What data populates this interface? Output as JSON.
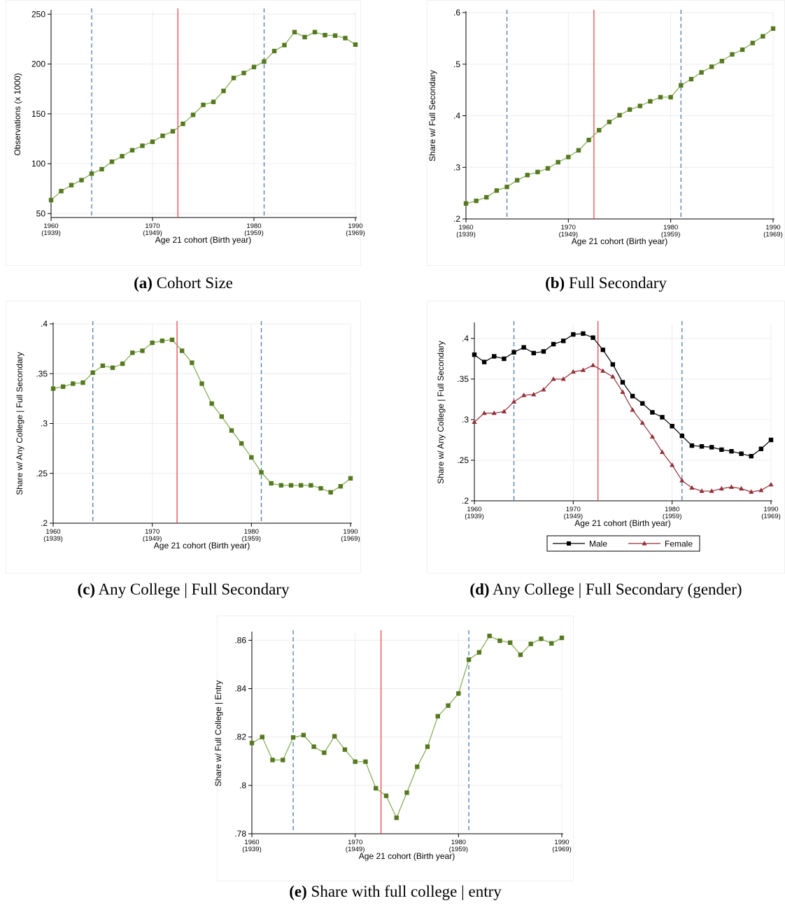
{
  "chart_data": [
    {
      "id": "a",
      "type": "line",
      "caption_tag": "(a)",
      "caption_text": "Cohort Size",
      "xlabel": "Age 21 cohort (Birth year)",
      "ylabel": "Observations (x 1000)",
      "x_ticks": [
        {
          "v": 1960,
          "l": "1960",
          "s": "(1939)"
        },
        {
          "v": 1970,
          "l": "1970",
          "s": "(1949)"
        },
        {
          "v": 1980,
          "l": "1980",
          "s": "(1959)"
        },
        {
          "v": 1990,
          "l": "1990",
          "s": "(1969)"
        }
      ],
      "y_ticks": [
        {
          "v": 50,
          "l": "50"
        },
        {
          "v": 100,
          "l": "100"
        },
        {
          "v": 150,
          "l": "150"
        },
        {
          "v": 200,
          "l": "200"
        },
        {
          "v": 250,
          "l": "250"
        }
      ],
      "xlim": [
        1960,
        1990
      ],
      "ylim": [
        46,
        253
      ],
      "vlines": [
        {
          "x": 1964,
          "style": "dashed",
          "color": "#4f7bad"
        },
        {
          "x": 1972.5,
          "style": "solid",
          "color": "#e8454a"
        },
        {
          "x": 1981,
          "style": "dashed",
          "color": "#4f7bad"
        }
      ],
      "x": [
        1960,
        1961,
        1962,
        1963,
        1964,
        1965,
        1966,
        1967,
        1968,
        1969,
        1970,
        1971,
        1972,
        1973,
        1974,
        1975,
        1976,
        1977,
        1978,
        1979,
        1980,
        1981,
        1982,
        1983,
        1984,
        1985,
        1986,
        1987,
        1988,
        1989,
        1990
      ],
      "series": [
        {
          "values": [
            63.5,
            72.5,
            78.5,
            83.5,
            90,
            94.5,
            102,
            107.5,
            113.5,
            118,
            122,
            128,
            132.5,
            140,
            149,
            159,
            162,
            173,
            186,
            191,
            197,
            202.5,
            213,
            219,
            232,
            227,
            232,
            229,
            228.5,
            226,
            219.5
          ],
          "color": "#4a7a14",
          "marker": "square",
          "marker_color": "#56791f",
          "line_color": "#7faa4e"
        }
      ],
      "legend": []
    },
    {
      "id": "b",
      "type": "line",
      "caption_tag": "(b)",
      "caption_text": "Full Secondary",
      "xlabel": "Age 21 cohort (Birth year)",
      "ylabel": "Share w/ Full Secondary",
      "x_ticks": [
        {
          "v": 1960,
          "l": "1960",
          "s": "(1939)"
        },
        {
          "v": 1970,
          "l": "1970",
          "s": "(1949)"
        },
        {
          "v": 1980,
          "l": "1980",
          "s": "(1959)"
        },
        {
          "v": 1990,
          "l": "1990",
          "s": "(1969)"
        }
      ],
      "y_ticks": [
        {
          "v": 0.2,
          "l": ".2"
        },
        {
          "v": 0.3,
          "l": ".3"
        },
        {
          "v": 0.4,
          "l": ".4"
        },
        {
          "v": 0.5,
          "l": ".5"
        },
        {
          "v": 0.6,
          "l": ".6"
        }
      ],
      "xlim": [
        1960,
        1990
      ],
      "ylim": [
        0.2,
        0.6
      ],
      "vlines": [
        {
          "x": 1964,
          "style": "dashed",
          "color": "#4f7bad"
        },
        {
          "x": 1972.5,
          "style": "solid",
          "color": "#e8454a"
        },
        {
          "x": 1981,
          "style": "dashed",
          "color": "#4f7bad"
        }
      ],
      "x": [
        1960,
        1961,
        1962,
        1963,
        1964,
        1965,
        1966,
        1967,
        1968,
        1969,
        1970,
        1971,
        1972,
        1973,
        1974,
        1975,
        1976,
        1977,
        1978,
        1979,
        1980,
        1981,
        1982,
        1983,
        1984,
        1985,
        1986,
        1987,
        1988,
        1989,
        1990
      ],
      "series": [
        {
          "values": [
            0.23,
            0.235,
            0.242,
            0.255,
            0.262,
            0.275,
            0.285,
            0.291,
            0.298,
            0.31,
            0.32,
            0.333,
            0.353,
            0.372,
            0.388,
            0.401,
            0.412,
            0.419,
            0.428,
            0.436,
            0.436,
            0.459,
            0.471,
            0.484,
            0.495,
            0.506,
            0.519,
            0.528,
            0.541,
            0.554,
            0.569
          ],
          "color": "#4a7a14",
          "marker": "square",
          "marker_color": "#56791f",
          "line_color": "#7faa4e"
        }
      ],
      "legend": []
    },
    {
      "id": "c",
      "type": "line",
      "caption_tag": "(c)",
      "caption_text": "Any College | Full Secondary",
      "xlabel": "Age 21 cohort (Birth year)",
      "ylabel": "Share w/ Any College | Full Secondary",
      "x_ticks": [
        {
          "v": 1960,
          "l": "1960",
          "s": "(1939)"
        },
        {
          "v": 1970,
          "l": "1970",
          "s": "(1949)"
        },
        {
          "v": 1980,
          "l": "1980",
          "s": "(1959)"
        },
        {
          "v": 1990,
          "l": "1990",
          "s": "(1969)"
        }
      ],
      "y_ticks": [
        {
          "v": 0.2,
          "l": ".2"
        },
        {
          "v": 0.25,
          "l": ".25"
        },
        {
          "v": 0.3,
          "l": ".3"
        },
        {
          "v": 0.35,
          "l": ".35"
        },
        {
          "v": 0.4,
          "l": ".4"
        }
      ],
      "xlim": [
        1960,
        1990
      ],
      "ylim": [
        0.2,
        0.4
      ],
      "vlines": [
        {
          "x": 1964,
          "style": "dashed",
          "color": "#4f7bad"
        },
        {
          "x": 1972.5,
          "style": "solid",
          "color": "#e8454a"
        },
        {
          "x": 1981,
          "style": "dashed",
          "color": "#4f7bad"
        }
      ],
      "x": [
        1960,
        1961,
        1962,
        1963,
        1964,
        1965,
        1966,
        1967,
        1968,
        1969,
        1970,
        1971,
        1972,
        1973,
        1974,
        1975,
        1976,
        1977,
        1978,
        1979,
        1980,
        1981,
        1982,
        1983,
        1984,
        1985,
        1986,
        1987,
        1988,
        1989,
        1990
      ],
      "series": [
        {
          "values": [
            0.335,
            0.337,
            0.34,
            0.341,
            0.351,
            0.358,
            0.356,
            0.36,
            0.371,
            0.373,
            0.381,
            0.383,
            0.384,
            0.373,
            0.361,
            0.34,
            0.32,
            0.307,
            0.293,
            0.28,
            0.266,
            0.251,
            0.24,
            0.238,
            0.238,
            0.238,
            0.238,
            0.235,
            0.231,
            0.237,
            0.245
          ],
          "color": "#4a7a14",
          "marker": "square",
          "marker_color": "#56791f",
          "line_color": "#7faa4e"
        }
      ],
      "legend": []
    },
    {
      "id": "d",
      "type": "line",
      "caption_tag": "(d)",
      "caption_text": "Any College | Full Secondary (gender)",
      "xlabel": "Age 21 cohort (Birth year)",
      "ylabel": "Share w/ Any College | Full Secondary",
      "x_ticks": [
        {
          "v": 1960,
          "l": "1960",
          "s": "(1939)"
        },
        {
          "v": 1970,
          "l": "1970",
          "s": "(1949)"
        },
        {
          "v": 1980,
          "l": "1980",
          "s": "(1959)"
        },
        {
          "v": 1990,
          "l": "1990",
          "s": "(1969)"
        }
      ],
      "y_ticks": [
        {
          "v": 0.2,
          "l": ".2"
        },
        {
          "v": 0.25,
          "l": ".25"
        },
        {
          "v": 0.3,
          "l": ".3"
        },
        {
          "v": 0.35,
          "l": ".35"
        },
        {
          "v": 0.4,
          "l": ".4"
        }
      ],
      "xlim": [
        1960,
        1990
      ],
      "ylim": [
        0.2,
        0.418
      ],
      "vlines": [
        {
          "x": 1964,
          "style": "dashed",
          "color": "#4f7bad"
        },
        {
          "x": 1972.5,
          "style": "solid",
          "color": "#e8454a"
        },
        {
          "x": 1981,
          "style": "dashed",
          "color": "#4f7bad"
        }
      ],
      "x": [
        1960,
        1961,
        1962,
        1963,
        1964,
        1965,
        1966,
        1967,
        1968,
        1969,
        1970,
        1971,
        1972,
        1973,
        1974,
        1975,
        1976,
        1977,
        1978,
        1979,
        1980,
        1981,
        1982,
        1983,
        1984,
        1985,
        1986,
        1987,
        1988,
        1989,
        1990
      ],
      "series": [
        {
          "name": "Male",
          "values": [
            0.38,
            0.371,
            0.378,
            0.375,
            0.383,
            0.389,
            0.382,
            0.384,
            0.393,
            0.397,
            0.405,
            0.406,
            0.401,
            0.386,
            0.368,
            0.346,
            0.329,
            0.32,
            0.309,
            0.303,
            0.292,
            0.28,
            0.268,
            0.267,
            0.266,
            0.263,
            0.261,
            0.258,
            0.255,
            0.264,
            0.275
          ],
          "color": "#000000",
          "marker": "square",
          "marker_color": "#000000",
          "line_color": "#000000"
        },
        {
          "name": "Female",
          "values": [
            0.297,
            0.308,
            0.308,
            0.31,
            0.322,
            0.33,
            0.331,
            0.337,
            0.35,
            0.35,
            0.359,
            0.361,
            0.367,
            0.36,
            0.353,
            0.334,
            0.312,
            0.296,
            0.279,
            0.26,
            0.244,
            0.225,
            0.216,
            0.212,
            0.212,
            0.215,
            0.217,
            0.215,
            0.211,
            0.213,
            0.22
          ],
          "color": "#943039",
          "marker": "triangle",
          "marker_color": "#943039",
          "line_color": "#943039"
        }
      ],
      "legend": [
        "Male",
        "Female"
      ]
    },
    {
      "id": "e",
      "type": "line",
      "caption_tag": "(e)",
      "caption_text": "Share with full college | entry",
      "xlabel": "Age 21 cohort (Birth year)",
      "ylabel": "Share w/ Full College | Entry",
      "x_ticks": [
        {
          "v": 1960,
          "l": "1960",
          "s": "(1939)"
        },
        {
          "v": 1970,
          "l": "1970",
          "s": "(1949)"
        },
        {
          "v": 1980,
          "l": "1980",
          "s": "(1959)"
        },
        {
          "v": 1990,
          "l": "1990",
          "s": "(1969)"
        }
      ],
      "y_ticks": [
        {
          "v": 0.78,
          "l": ".78"
        },
        {
          "v": 0.8,
          "l": ".8"
        },
        {
          "v": 0.82,
          "l": ".82"
        },
        {
          "v": 0.84,
          "l": ".84"
        },
        {
          "v": 0.86,
          "l": ".86"
        }
      ],
      "xlim": [
        1960,
        1990
      ],
      "ylim": [
        0.78,
        0.863
      ],
      "vlines": [
        {
          "x": 1964,
          "style": "dashed",
          "color": "#4f7bad"
        },
        {
          "x": 1972.5,
          "style": "solid",
          "color": "#e8454a"
        },
        {
          "x": 1981,
          "style": "dashed",
          "color": "#4f7bad"
        }
      ],
      "x": [
        1960,
        1961,
        1962,
        1963,
        1964,
        1965,
        1966,
        1967,
        1968,
        1969,
        1970,
        1971,
        1972,
        1973,
        1974,
        1975,
        1976,
        1977,
        1978,
        1979,
        1980,
        1981,
        1982,
        1983,
        1984,
        1985,
        1986,
        1987,
        1988,
        1989,
        1990
      ],
      "series": [
        {
          "values": [
            0.8175,
            0.82,
            0.8105,
            0.8105,
            0.8198,
            0.8208,
            0.816,
            0.8135,
            0.8203,
            0.8148,
            0.8098,
            0.8098,
            0.7988,
            0.7957,
            0.7866,
            0.797,
            0.8077,
            0.816,
            0.8286,
            0.833,
            0.838,
            0.852,
            0.855,
            0.8618,
            0.8598,
            0.859,
            0.854,
            0.8585,
            0.8606,
            0.8587,
            0.861
          ],
          "color": "#4a7a14",
          "marker": "square",
          "marker_color": "#56791f",
          "line_color": "#7faa4e"
        }
      ],
      "legend": []
    }
  ]
}
